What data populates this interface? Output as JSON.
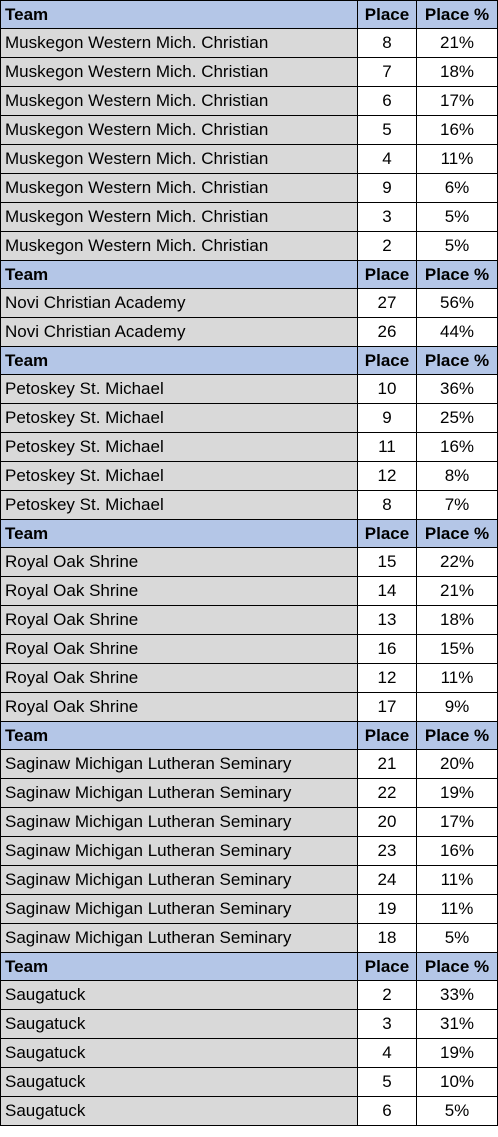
{
  "columns": {
    "team": "Team",
    "place": "Place",
    "pct": "Place %"
  },
  "colors": {
    "header_bg": "#b4c6e7",
    "team_bg": "#d9d9d9",
    "border": "#000000"
  },
  "sections": [
    {
      "rows": [
        {
          "team": "Muskegon Western Mich. Christian",
          "place": "8",
          "pct": "21%"
        },
        {
          "team": "Muskegon Western Mich. Christian",
          "place": "7",
          "pct": "18%"
        },
        {
          "team": "Muskegon Western Mich. Christian",
          "place": "6",
          "pct": "17%"
        },
        {
          "team": "Muskegon Western Mich. Christian",
          "place": "5",
          "pct": "16%"
        },
        {
          "team": "Muskegon Western Mich. Christian",
          "place": "4",
          "pct": "11%"
        },
        {
          "team": "Muskegon Western Mich. Christian",
          "place": "9",
          "pct": "6%"
        },
        {
          "team": "Muskegon Western Mich. Christian",
          "place": "3",
          "pct": "5%"
        },
        {
          "team": "Muskegon Western Mich. Christian",
          "place": "2",
          "pct": "5%"
        }
      ]
    },
    {
      "rows": [
        {
          "team": "Novi Christian Academy",
          "place": "27",
          "pct": "56%"
        },
        {
          "team": "Novi Christian Academy",
          "place": "26",
          "pct": "44%"
        }
      ]
    },
    {
      "rows": [
        {
          "team": "Petoskey St. Michael",
          "place": "10",
          "pct": "36%"
        },
        {
          "team": "Petoskey St. Michael",
          "place": "9",
          "pct": "25%"
        },
        {
          "team": "Petoskey St. Michael",
          "place": "11",
          "pct": "16%"
        },
        {
          "team": "Petoskey St. Michael",
          "place": "12",
          "pct": "8%"
        },
        {
          "team": "Petoskey St. Michael",
          "place": "8",
          "pct": "7%"
        }
      ]
    },
    {
      "rows": [
        {
          "team": "Royal Oak Shrine",
          "place": "15",
          "pct": "22%"
        },
        {
          "team": "Royal Oak Shrine",
          "place": "14",
          "pct": "21%"
        },
        {
          "team": "Royal Oak Shrine",
          "place": "13",
          "pct": "18%"
        },
        {
          "team": "Royal Oak Shrine",
          "place": "16",
          "pct": "15%"
        },
        {
          "team": "Royal Oak Shrine",
          "place": "12",
          "pct": "11%"
        },
        {
          "team": "Royal Oak Shrine",
          "place": "17",
          "pct": "9%"
        }
      ]
    },
    {
      "rows": [
        {
          "team": "Saginaw Michigan Lutheran Seminary",
          "place": "21",
          "pct": "20%"
        },
        {
          "team": "Saginaw Michigan Lutheran Seminary",
          "place": "22",
          "pct": "19%"
        },
        {
          "team": "Saginaw Michigan Lutheran Seminary",
          "place": "20",
          "pct": "17%"
        },
        {
          "team": "Saginaw Michigan Lutheran Seminary",
          "place": "23",
          "pct": "16%"
        },
        {
          "team": "Saginaw Michigan Lutheran Seminary",
          "place": "24",
          "pct": "11%"
        },
        {
          "team": "Saginaw Michigan Lutheran Seminary",
          "place": "19",
          "pct": "11%"
        },
        {
          "team": "Saginaw Michigan Lutheran Seminary",
          "place": "18",
          "pct": "5%"
        }
      ]
    },
    {
      "rows": [
        {
          "team": "Saugatuck",
          "place": "2",
          "pct": "33%"
        },
        {
          "team": "Saugatuck",
          "place": "3",
          "pct": "31%"
        },
        {
          "team": "Saugatuck",
          "place": "4",
          "pct": "19%"
        },
        {
          "team": "Saugatuck",
          "place": "5",
          "pct": "10%"
        },
        {
          "team": "Saugatuck",
          "place": "6",
          "pct": "5%"
        }
      ]
    }
  ]
}
